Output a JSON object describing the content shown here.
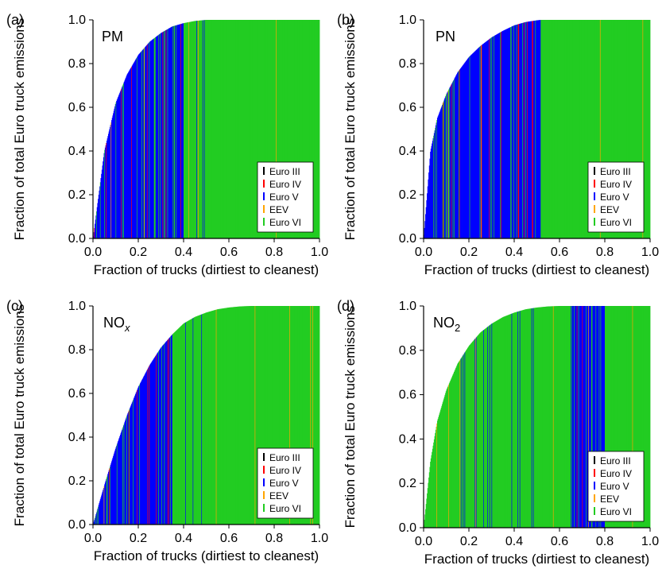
{
  "chart_data": [
    {
      "panel_label": "(a)",
      "title_main": "PM",
      "title_sub": "",
      "title_style": "normal",
      "type": "bar",
      "ylabel": "Fraction of total Euro truck emissions",
      "xlabel": "Fraction of trucks (dirtiest to cleanest)",
      "xlim": [
        0,
        1
      ],
      "ylim": [
        0,
        1
      ],
      "xticks": [
        "0.0",
        "0.2",
        "0.4",
        "0.6",
        "0.8",
        "1.0"
      ],
      "yticks": [
        "0.0",
        "0.2",
        "0.4",
        "0.6",
        "0.8",
        "1.0"
      ],
      "curve": {
        "x": [
          0,
          0.05,
          0.1,
          0.15,
          0.2,
          0.25,
          0.3,
          0.35,
          0.4,
          0.45,
          0.5,
          1.0
        ],
        "y": [
          0,
          0.4,
          0.62,
          0.75,
          0.84,
          0.9,
          0.94,
          0.97,
          0.985,
          0.995,
          1.0,
          1.0
        ]
      },
      "dominant_class_by_range": [
        {
          "from": 0,
          "to": 0.4,
          "class": "Euro V"
        },
        {
          "from": 0.4,
          "to": 1.0,
          "class": "Euro VI"
        }
      ],
      "legend": [
        "Euro III",
        "Euro IV",
        "Euro V",
        "EEV",
        "Euro VI"
      ],
      "legend_position": "lower-right"
    },
    {
      "panel_label": "(b)",
      "title_main": "PN",
      "title_sub": "",
      "title_style": "normal",
      "type": "bar",
      "ylabel": "Fraction of total Euro truck emissions",
      "xlabel": "Fraction of trucks (dirtiest to cleanest)",
      "xlim": [
        0,
        1
      ],
      "ylim": [
        0,
        1
      ],
      "xticks": [
        "0.0",
        "0.2",
        "0.4",
        "0.6",
        "0.8",
        "1.0"
      ],
      "yticks": [
        "0.0",
        "0.2",
        "0.4",
        "0.6",
        "0.8",
        "1.0"
      ],
      "curve": {
        "x": [
          0,
          0.03,
          0.06,
          0.1,
          0.15,
          0.2,
          0.25,
          0.3,
          0.35,
          0.4,
          0.45,
          0.5,
          0.52,
          1.0
        ],
        "y": [
          0,
          0.4,
          0.55,
          0.66,
          0.76,
          0.83,
          0.88,
          0.92,
          0.95,
          0.975,
          0.99,
          0.998,
          1.0,
          1.0
        ]
      },
      "dominant_class_by_range": [
        {
          "from": 0,
          "to": 0.52,
          "class": "Euro V"
        },
        {
          "from": 0.52,
          "to": 1.0,
          "class": "Euro VI"
        }
      ],
      "legend": [
        "Euro III",
        "Euro IV",
        "Euro V",
        "EEV",
        "Euro VI"
      ],
      "legend_position": "lower-right"
    },
    {
      "panel_label": "(c)",
      "title_main": "NO",
      "title_sub": "x",
      "title_style": "italic-sub",
      "type": "bar",
      "ylabel": "Fraction of total Euro truck emissions",
      "xlabel": "Fraction of trucks (dirtiest to cleanest)",
      "xlim": [
        0,
        1
      ],
      "ylim": [
        0,
        1
      ],
      "xticks": [
        "0.0",
        "0.2",
        "0.4",
        "0.6",
        "0.8",
        "1.0"
      ],
      "yticks": [
        "0.0",
        "0.2",
        "0.4",
        "0.6",
        "0.8",
        "1.0"
      ],
      "curve": {
        "x": [
          0,
          0.05,
          0.1,
          0.15,
          0.2,
          0.25,
          0.3,
          0.35,
          0.4,
          0.45,
          0.5,
          0.55,
          0.6,
          0.65,
          0.7,
          1.0
        ],
        "y": [
          0,
          0.18,
          0.35,
          0.5,
          0.63,
          0.73,
          0.81,
          0.87,
          0.92,
          0.95,
          0.97,
          0.985,
          0.993,
          0.998,
          1.0,
          1.0
        ]
      },
      "dominant_class_by_range": [
        {
          "from": 0,
          "to": 0.35,
          "class": "Euro V"
        },
        {
          "from": 0.35,
          "to": 1.0,
          "class": "Euro VI"
        }
      ],
      "legend": [
        "Euro III",
        "Euro IV",
        "Euro V",
        "EEV",
        "Euro VI"
      ],
      "legend_position": "lower-right"
    },
    {
      "panel_label": "(d)",
      "title_main": "NO",
      "title_sub": "2",
      "title_style": "sub",
      "type": "bar",
      "ylabel": "Fraction of total Euro truck emissions",
      "xlabel": "Fraction of trucks (dirtiest to cleanest)",
      "xlim": [
        0,
        1
      ],
      "ylim": [
        0,
        1
      ],
      "xticks": [
        "0.0",
        "0.2",
        "0.4",
        "0.6",
        "0.8",
        "1.0"
      ],
      "yticks": [
        "0.0",
        "0.2",
        "0.4",
        "0.6",
        "0.8",
        "1.0"
      ],
      "curve": {
        "x": [
          0,
          0.03,
          0.06,
          0.1,
          0.15,
          0.2,
          0.25,
          0.3,
          0.35,
          0.4,
          0.45,
          0.5,
          0.55,
          0.6,
          1.0
        ],
        "y": [
          0,
          0.3,
          0.48,
          0.62,
          0.74,
          0.82,
          0.88,
          0.92,
          0.95,
          0.97,
          0.985,
          0.993,
          0.998,
          1.0,
          1.0
        ]
      },
      "dominant_class_by_range": [
        {
          "from": 0,
          "to": 0.65,
          "class": "Euro VI"
        },
        {
          "from": 0.65,
          "to": 0.8,
          "class": "Euro V"
        },
        {
          "from": 0.8,
          "to": 1.0,
          "class": "Euro VI"
        }
      ],
      "legend": [
        "Euro III",
        "Euro IV",
        "Euro V",
        "EEV",
        "Euro VI"
      ],
      "legend_position": "lower-right"
    }
  ],
  "class_colors": {
    "Euro III": "#000000",
    "Euro IV": "#ff0000",
    "Euro V": "#0000ff",
    "EEV": "#ffa500",
    "Euro VI": "#22cc22"
  }
}
